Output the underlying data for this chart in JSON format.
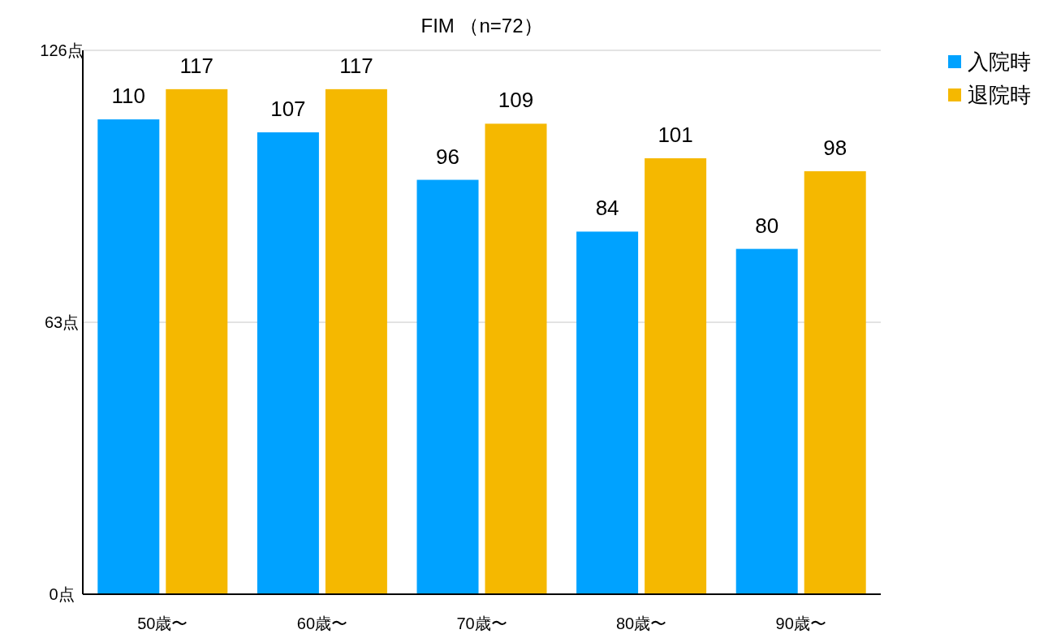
{
  "chart_data": {
    "type": "bar",
    "title": "FIM （n=72）",
    "categories": [
      "50歳〜",
      "60歳〜",
      "70歳〜",
      "80歳〜",
      "90歳〜"
    ],
    "series": [
      {
        "name": "入院時",
        "color": "#00a2ff",
        "values": [
          110,
          107,
          96,
          84,
          80
        ]
      },
      {
        "name": "退院時",
        "color": "#f5b800",
        "values": [
          117,
          117,
          109,
          101,
          98
        ]
      }
    ],
    "ylim": [
      0,
      126
    ],
    "yticks": [
      {
        "value": 0,
        "label": "0点"
      },
      {
        "value": 63,
        "label": "63点"
      },
      {
        "value": 126,
        "label": "126点"
      }
    ],
    "grid": "y",
    "legend": "top right",
    "data_labels": true
  }
}
